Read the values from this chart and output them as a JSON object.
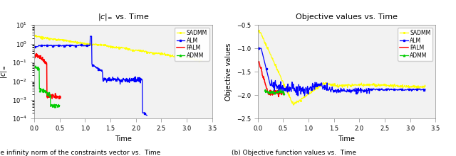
{
  "fig_width": 6.4,
  "fig_height": 2.2,
  "dpi": 100,
  "left_title": "|c|$_\\infty$ vs. Time",
  "right_title": "Objective values vs. Time",
  "left_xlabel": "Time",
  "right_xlabel": "Time",
  "left_ylabel": "|c|$_\\infty$",
  "right_ylabel": "Objective values",
  "left_xlim": [
    0,
    3.5
  ],
  "right_xlim": [
    0,
    3.5
  ],
  "left_ylim": [
    0.0001,
    10
  ],
  "right_ylim": [
    -2.5,
    -0.5
  ],
  "caption_left": "(a) The infinity norm of the constraints vector vs.  Time",
  "caption_right": "(b) Objective function values vs.  Time",
  "colors": {
    "SADMM": "#ffff00",
    "ALM": "#0000ff",
    "PALM": "#ff0000",
    "ADMM": "#00cc00"
  },
  "bg_color": "#f2f2f2"
}
